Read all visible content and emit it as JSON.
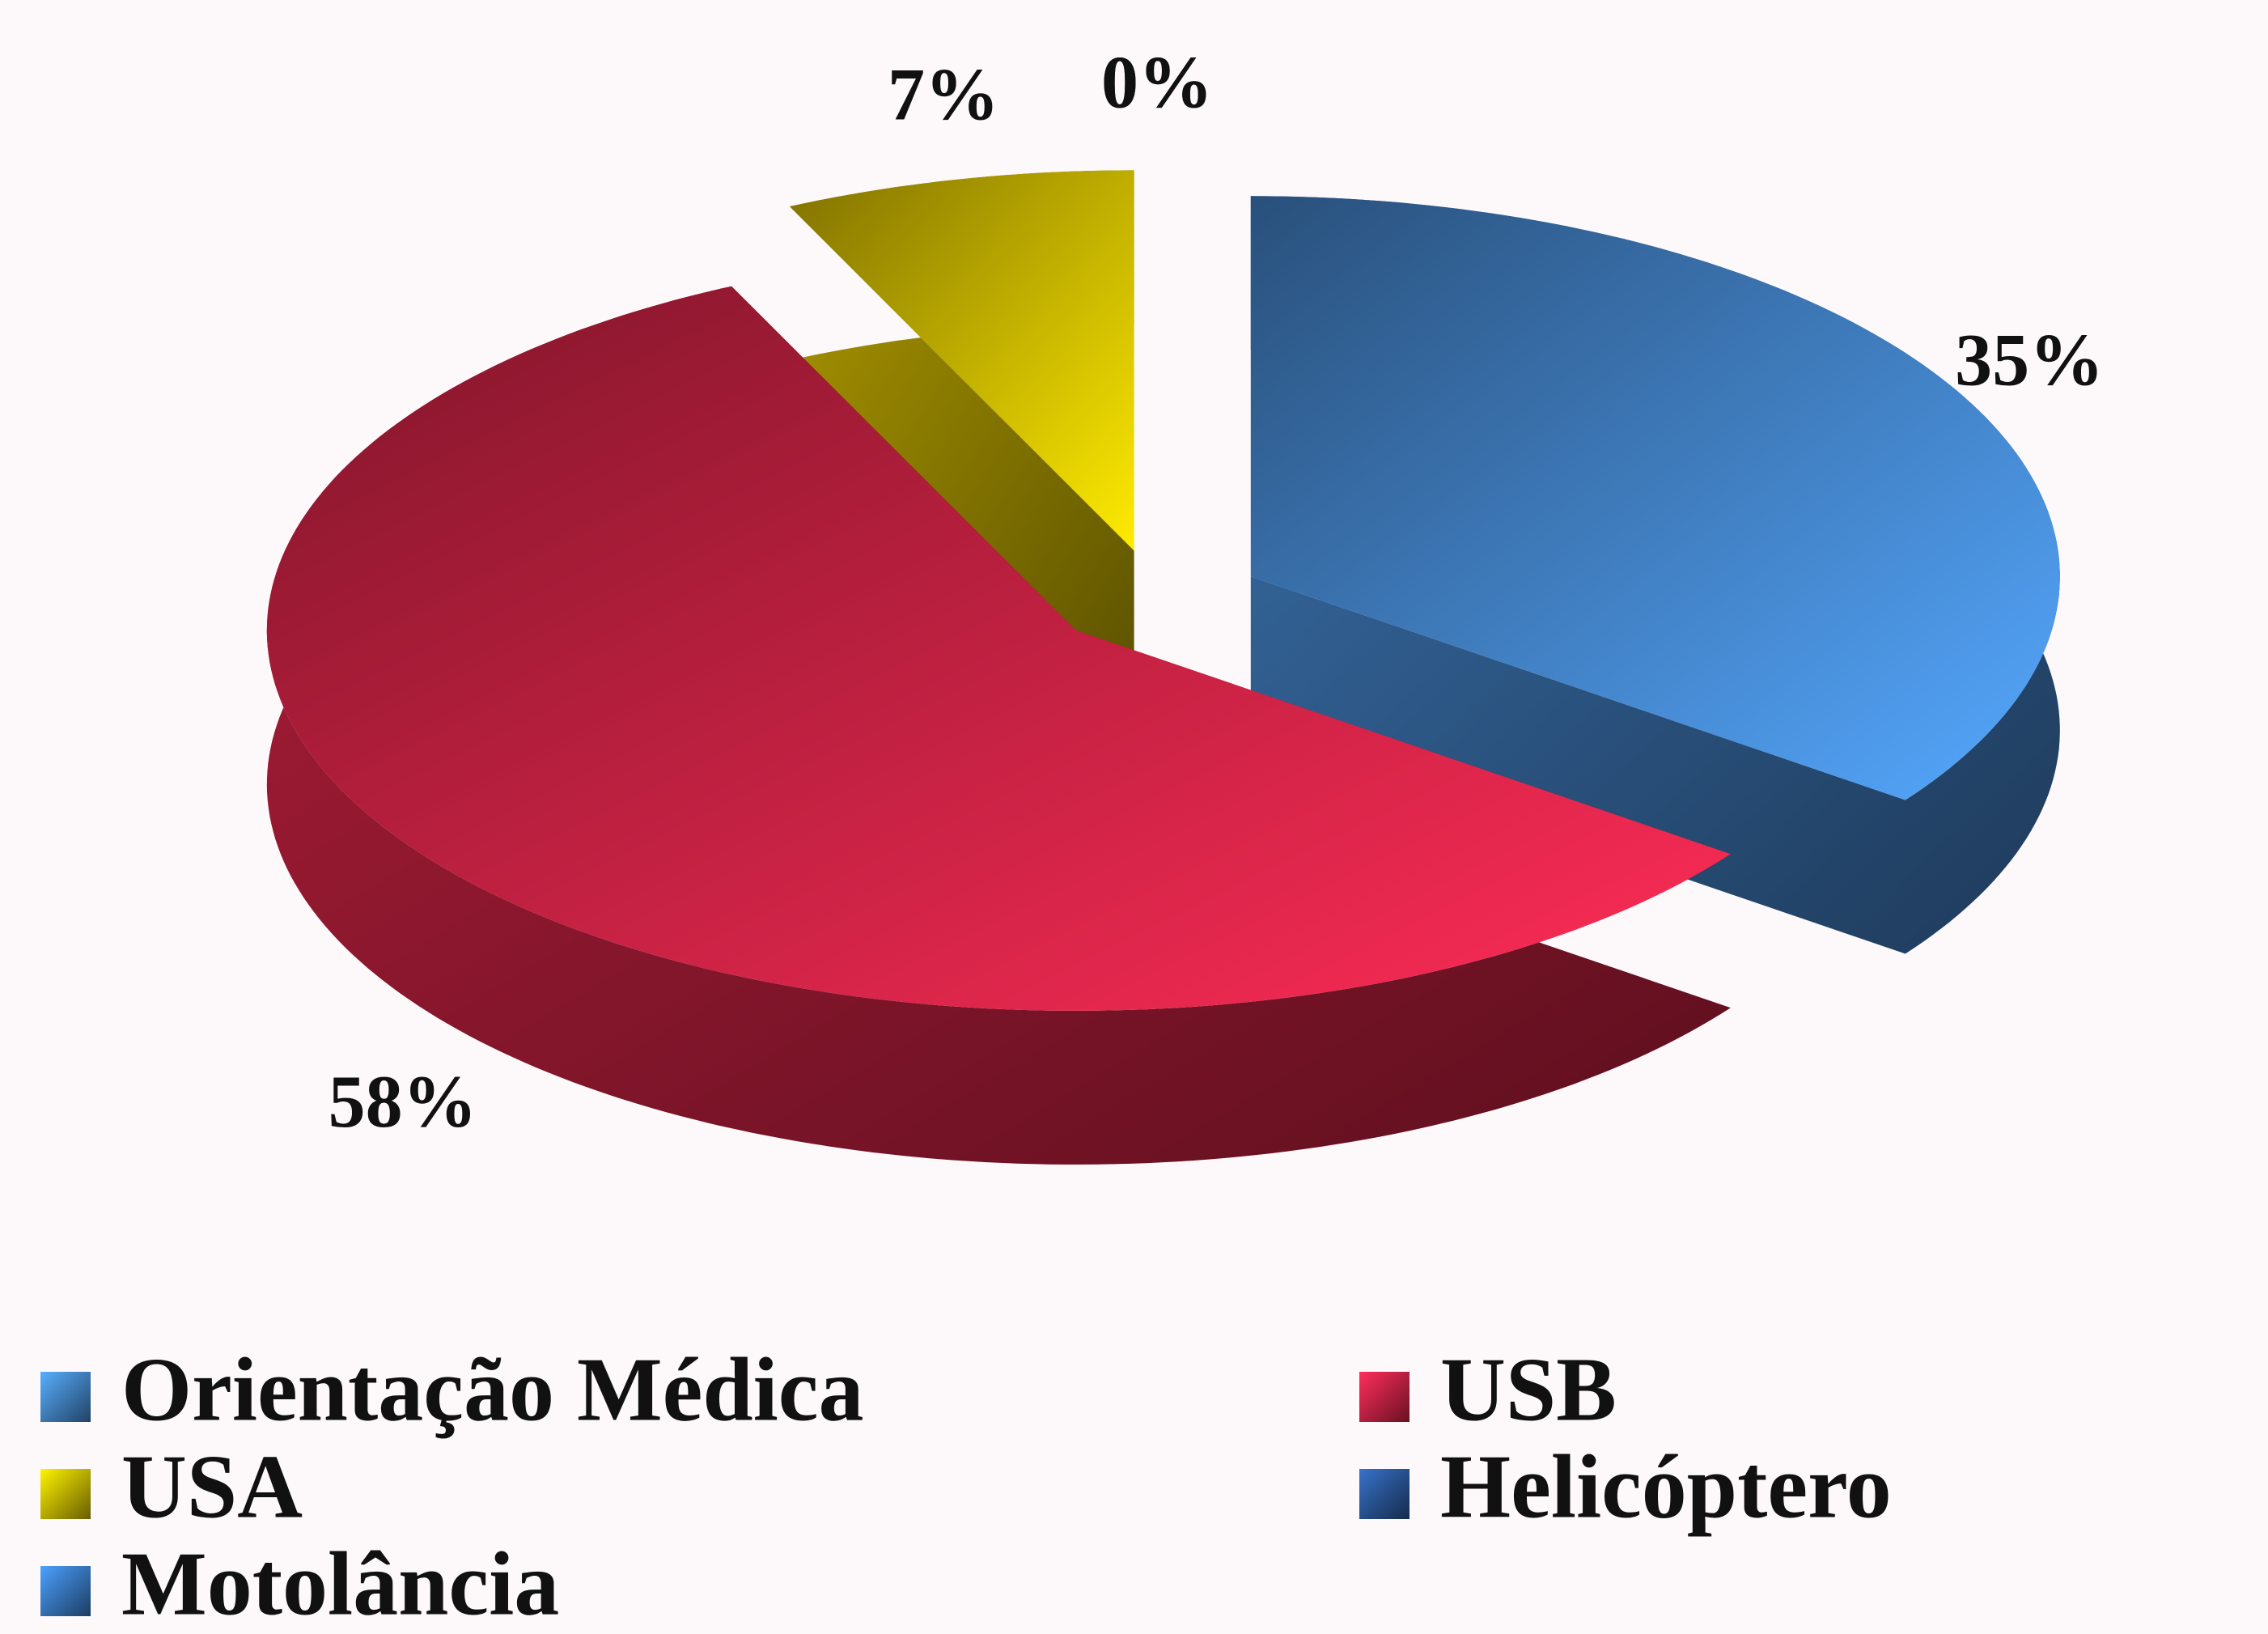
{
  "chart_data": {
    "type": "pie",
    "categories": [
      "Orientação Médica",
      "USB",
      "USA",
      "Helicóptero",
      "Motolância"
    ],
    "values": [
      35,
      58,
      7,
      0,
      0
    ],
    "value_labels": [
      "35%",
      "58%",
      "7%",
      "0%",
      "0%"
    ],
    "colors": [
      "#4a92e0",
      "#e8264c",
      "#e6cc00",
      "#2f5fa8",
      "#3f86d8"
    ],
    "legend": "bottom"
  }
}
